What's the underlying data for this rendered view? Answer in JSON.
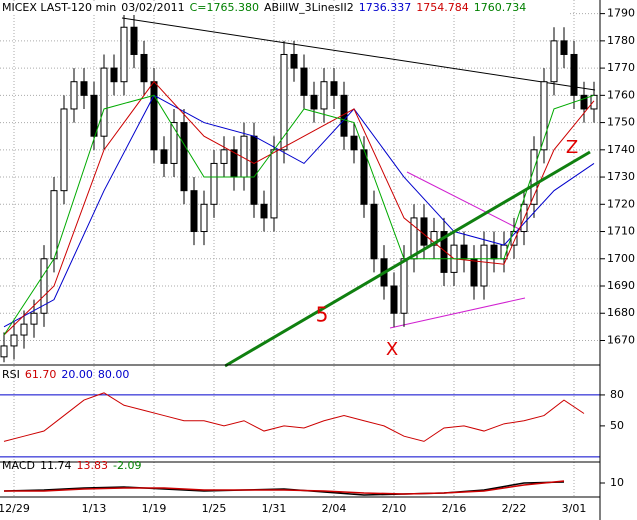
{
  "chart_data": {
    "type": "candlestick",
    "header": [
      "MICEX LAST-120 min",
      "03/02/2011",
      "C=1765.380",
      "ABillW_3LinesII2",
      "1736.337",
      "1754.784",
      "1760.734"
    ],
    "header_colors": [
      "#000000",
      "#000000",
      "#008000",
      "#000000",
      "#0000cc",
      "#cc0000",
      "#008000"
    ],
    "xlim": [
      -0.4,
      59.6
    ],
    "xticks": [
      {
        "value": 1,
        "label": "12/29"
      },
      {
        "value": 9,
        "label": "1/13"
      },
      {
        "value": 15,
        "label": "1/19"
      },
      {
        "value": 21,
        "label": "1/25"
      },
      {
        "value": 27,
        "label": "1/31"
      },
      {
        "value": 33,
        "label": "2/04"
      },
      {
        "value": 39,
        "label": "2/10"
      },
      {
        "value": 45,
        "label": "2/16"
      },
      {
        "value": 51,
        "label": "2/22"
      },
      {
        "value": 57,
        "label": "3/01"
      }
    ],
    "ylim": [
      1661,
      1795
    ],
    "yticks": [
      1670,
      1680,
      1690,
      1700,
      1710,
      1720,
      1730,
      1740,
      1750,
      1760,
      1770,
      1780,
      1790
    ],
    "grid": true,
    "open": [
      1664,
      1668,
      1672,
      1676,
      1680,
      1700,
      1725,
      1755,
      1765,
      1760,
      1745,
      1770,
      1765,
      1785,
      1775,
      1765,
      1740,
      1735,
      1750,
      1725,
      1710,
      1720,
      1735,
      1740,
      1730,
      1745,
      1720,
      1715,
      1740,
      1775,
      1770,
      1760,
      1755,
      1765,
      1760,
      1745,
      1740,
      1720,
      1700,
      1690,
      1680,
      1700,
      1715,
      1705,
      1710,
      1695,
      1705,
      1700,
      1690,
      1705,
      1700,
      1705,
      1710,
      1720,
      1740,
      1765,
      1780,
      1775,
      1760,
      1755
    ],
    "high": [
      1673,
      1677,
      1681,
      1685,
      1705,
      1730,
      1760,
      1770,
      1770,
      1765,
      1775,
      1775,
      1790,
      1790,
      1780,
      1770,
      1745,
      1755,
      1755,
      1730,
      1725,
      1740,
      1745,
      1745,
      1750,
      1750,
      1725,
      1745,
      1780,
      1780,
      1775,
      1765,
      1770,
      1770,
      1765,
      1750,
      1745,
      1725,
      1705,
      1695,
      1705,
      1720,
      1720,
      1715,
      1715,
      1710,
      1710,
      1705,
      1710,
      1710,
      1710,
      1715,
      1725,
      1745,
      1770,
      1785,
      1785,
      1780,
      1765,
      1765
    ],
    "low": [
      1662,
      1663,
      1667,
      1671,
      1675,
      1695,
      1720,
      1750,
      1755,
      1740,
      1740,
      1760,
      1760,
      1770,
      1760,
      1735,
      1730,
      1730,
      1720,
      1705,
      1705,
      1715,
      1730,
      1725,
      1725,
      1715,
      1710,
      1710,
      1735,
      1765,
      1755,
      1750,
      1750,
      1755,
      1740,
      1735,
      1715,
      1695,
      1685,
      1675,
      1675,
      1695,
      1700,
      1700,
      1690,
      1690,
      1695,
      1685,
      1685,
      1695,
      1695,
      1700,
      1705,
      1715,
      1735,
      1760,
      1770,
      1755,
      1750,
      1750
    ],
    "close": [
      1668,
      1672,
      1676,
      1680,
      1700,
      1725,
      1755,
      1765,
      1760,
      1745,
      1770,
      1765,
      1785,
      1775,
      1765,
      1740,
      1735,
      1750,
      1725,
      1710,
      1720,
      1735,
      1740,
      1730,
      1745,
      1720,
      1715,
      1740,
      1775,
      1770,
      1760,
      1755,
      1765,
      1760,
      1745,
      1740,
      1720,
      1700,
      1690,
      1680,
      1700,
      1715,
      1705,
      1710,
      1695,
      1705,
      1700,
      1690,
      1705,
      1700,
      1705,
      1710,
      1720,
      1740,
      1765,
      1780,
      1775,
      1760,
      1755,
      1760
    ],
    "overlays": [
      {
        "color": "#0000cc",
        "x": [
          0,
          5,
          10,
          15,
          20,
          25,
          30,
          35,
          40,
          45,
          50,
          55,
          59
        ],
        "values": [
          1675,
          1685,
          1725,
          1760,
          1750,
          1745,
          1735,
          1755,
          1730,
          1710,
          1705,
          1725,
          1735
        ]
      },
      {
        "color": "#cc0000",
        "x": [
          0,
          5,
          10,
          15,
          20,
          25,
          30,
          35,
          40,
          45,
          50,
          55,
          59
        ],
        "values": [
          1672,
          1690,
          1740,
          1765,
          1745,
          1735,
          1745,
          1755,
          1715,
          1700,
          1698,
          1740,
          1758
        ]
      },
      {
        "color": "#00aa00",
        "x": [
          0,
          5,
          10,
          15,
          20,
          25,
          30,
          35,
          40,
          45,
          50,
          55,
          59
        ],
        "values": [
          1672,
          1700,
          1755,
          1760,
          1730,
          1730,
          1755,
          1750,
          1700,
          1700,
          1700,
          1755,
          1760
        ]
      }
    ],
    "annotations": [
      "5",
      "X",
      "Z"
    ],
    "rsi": {
      "header": [
        "RSI",
        "61.70",
        "20.00",
        "80.00"
      ],
      "header_colors": [
        "#000000",
        "#cc0000",
        "#0000cc",
        "#0000cc"
      ],
      "ylim": [
        15,
        109
      ],
      "yticks": [
        50,
        80
      ],
      "levels": [
        20,
        80
      ],
      "color": "#cc0000",
      "x": [
        0,
        2,
        4,
        6,
        8,
        10,
        12,
        14,
        16,
        18,
        20,
        22,
        24,
        26,
        28,
        30,
        32,
        34,
        36,
        38,
        40,
        42,
        44,
        46,
        48,
        50,
        52,
        54,
        56,
        58
      ],
      "values": [
        35,
        40,
        45,
        60,
        75,
        82,
        70,
        65,
        60,
        55,
        55,
        50,
        55,
        45,
        50,
        48,
        55,
        60,
        55,
        50,
        40,
        35,
        48,
        50,
        45,
        52,
        55,
        60,
        75,
        62
      ]
    },
    "macd": {
      "header": [
        "MACD",
        "11.74",
        "13.83",
        "-2.09"
      ],
      "header_colors": [
        "#000000",
        "#000000",
        "#cc0000",
        "#008000"
      ],
      "ylim": [
        -4,
        31
      ],
      "yticks": [
        10
      ],
      "series": [
        {
          "color": "#000000",
          "x": [
            0,
            4,
            8,
            12,
            16,
            20,
            24,
            28,
            32,
            36,
            40,
            44,
            48,
            52,
            56
          ],
          "values": [
            2,
            3,
            5,
            6,
            4,
            2,
            3,
            4,
            1,
            -2,
            -1,
            0,
            3,
            10,
            11
          ]
        },
        {
          "color": "#cc0000",
          "x": [
            0,
            4,
            8,
            12,
            16,
            20,
            24,
            28,
            32,
            36,
            40,
            44,
            48,
            52,
            56
          ],
          "values": [
            2,
            2,
            4,
            5,
            5,
            3,
            3,
            3,
            2,
            0,
            -1,
            0,
            2,
            8,
            12
          ]
        }
      ]
    }
  }
}
